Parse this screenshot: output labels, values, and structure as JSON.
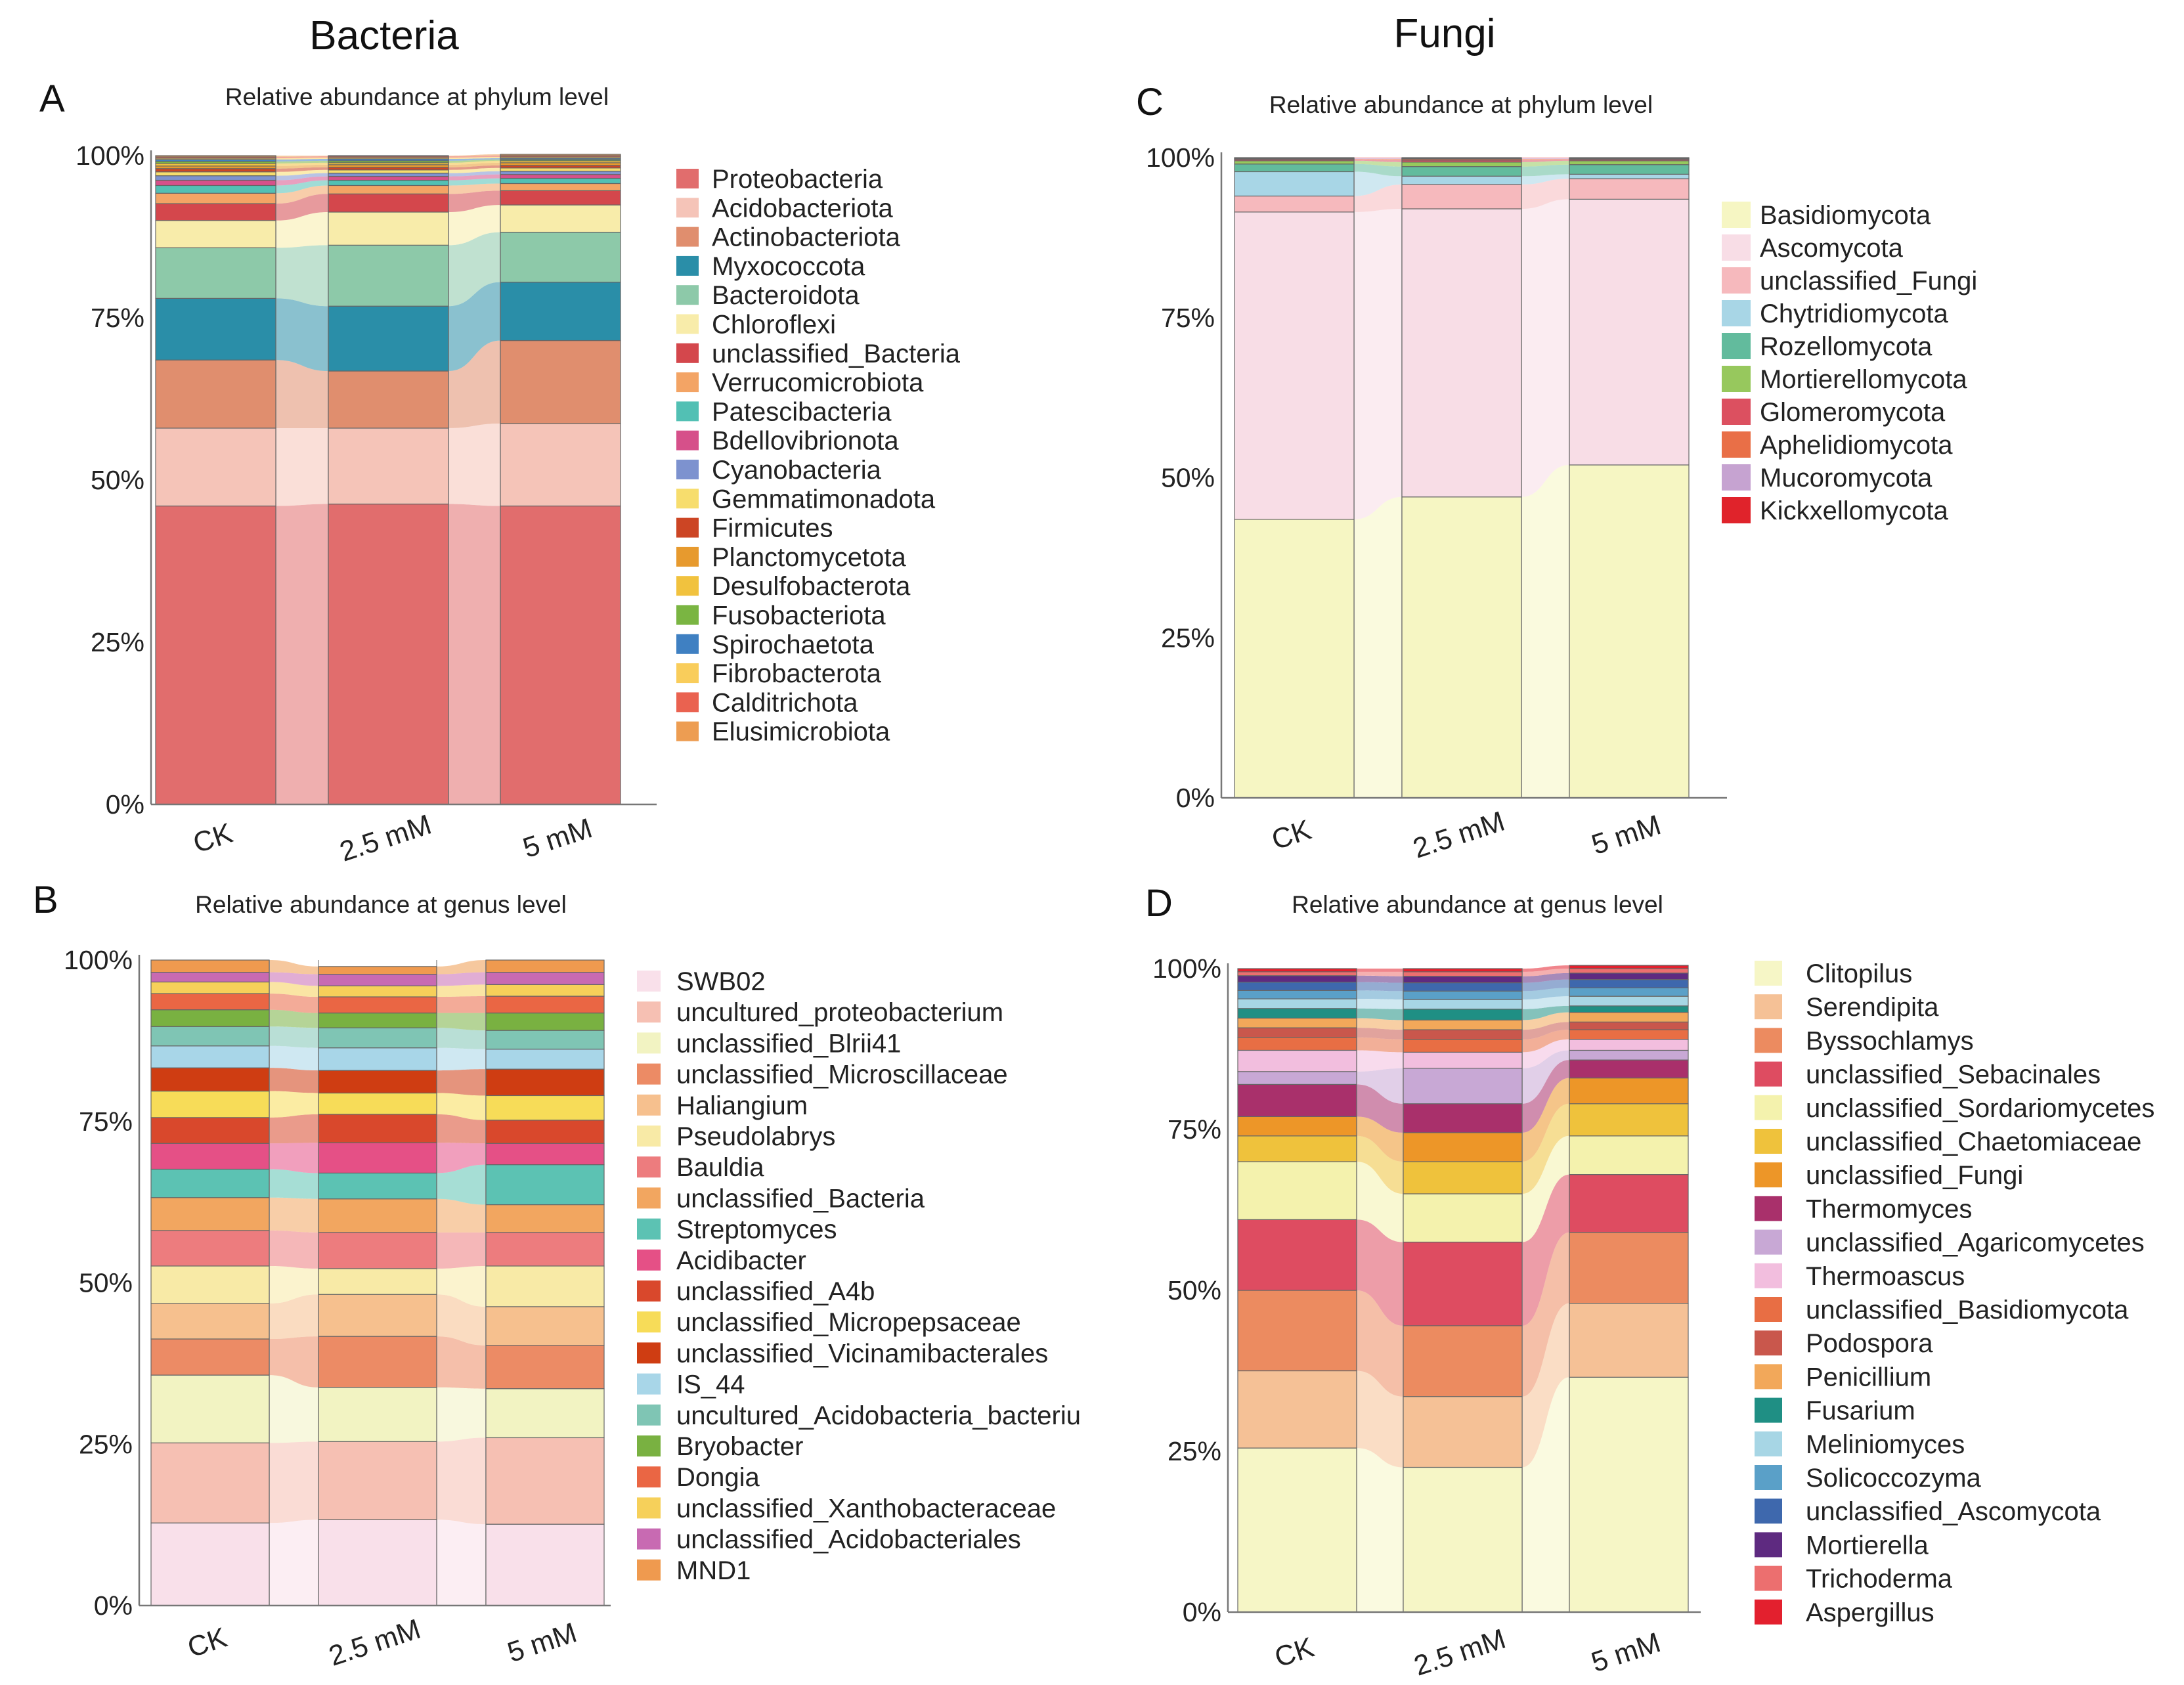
{
  "headers": {
    "left": "Bacteria",
    "right": "Fungi"
  },
  "y_ticks": [
    "0%",
    "25%",
    "50%",
    "75%",
    "100%"
  ],
  "chart_data": [
    {
      "letter": "A",
      "type": "stacked_bar",
      "title": "Relative abundance at phylum level",
      "categories": [
        "CK",
        "2.5 mM",
        "5 mM"
      ],
      "ylim": [
        0,
        100
      ],
      "series": [
        {
          "name": "Proteobacteria",
          "color": "#e16d6d",
          "values": [
            46,
            46.3,
            46
          ]
        },
        {
          "name": "Acidobacteriota",
          "color": "#f5c4b8",
          "values": [
            12,
            11.7,
            12.7
          ]
        },
        {
          "name": "Actinobacteriota",
          "color": "#e08e6e",
          "values": [
            10.5,
            8.8,
            12.8
          ]
        },
        {
          "name": "Myxococcota",
          "color": "#2a8ea8",
          "values": [
            9.5,
            10,
            9
          ]
        },
        {
          "name": "Bacteroidota",
          "color": "#8dc9a9",
          "values": [
            7.8,
            9.4,
            7.7
          ]
        },
        {
          "name": "Chloroflexi",
          "color": "#f8ecaa",
          "values": [
            4.2,
            5.1,
            4.2
          ]
        },
        {
          "name": "unclassified_Bacteria",
          "color": "#d4474c",
          "values": [
            2.6,
            2.8,
            2.2
          ]
        },
        {
          "name": "Verrucomicrobiota",
          "color": "#f3a465",
          "values": [
            1.6,
            1.3,
            1.1
          ]
        },
        {
          "name": "Patescibacteria",
          "color": "#52c0b4",
          "values": [
            1.2,
            0.8,
            0.8
          ]
        },
        {
          "name": "Bdellovibrionota",
          "color": "#d6508a",
          "values": [
            0.8,
            0.6,
            0.6
          ]
        },
        {
          "name": "Cyanobacteria",
          "color": "#7d92cf",
          "values": [
            0.7,
            0.5,
            0.5
          ]
        },
        {
          "name": "Gemmatimonadota",
          "color": "#f7dd6d",
          "values": [
            0.6,
            0.5,
            0.5
          ]
        },
        {
          "name": "Firmicutes",
          "color": "#cc4524",
          "values": [
            0.5,
            0.4,
            0.4
          ]
        },
        {
          "name": "Planctomycetota",
          "color": "#e79a2e",
          "values": [
            0.4,
            0.4,
            0.4
          ]
        },
        {
          "name": "Desulfobacterota",
          "color": "#f1c23e",
          "values": [
            0.4,
            0.3,
            0.3
          ]
        },
        {
          "name": "Fusobacteriota",
          "color": "#7ab542",
          "values": [
            0.3,
            0.3,
            0.2
          ]
        },
        {
          "name": "Spirochaetota",
          "color": "#3f80c2",
          "values": [
            0.3,
            0.3,
            0.2
          ]
        },
        {
          "name": "Fibrobacterota",
          "color": "#f9cd5b",
          "values": [
            0.2,
            0.2,
            0.2
          ]
        },
        {
          "name": "Calditrichota",
          "color": "#ea6250",
          "values": [
            0.2,
            0.2,
            0.2
          ]
        },
        {
          "name": "Elusimicrobiota",
          "color": "#ed9d52",
          "values": [
            0.2,
            0.1,
            0.2
          ]
        }
      ]
    },
    {
      "letter": "B",
      "type": "stacked_bar",
      "title": "Relative abundance at genus level",
      "categories": [
        "CK",
        "2.5 mM",
        "5 mM"
      ],
      "ylim": [
        0,
        100
      ],
      "series": [
        {
          "name": "SWB02",
          "color": "#f9e0ea",
          "values": [
            12.8,
            13.3,
            12.6
          ]
        },
        {
          "name": "uncultured_proteobacterium",
          "color": "#f6c0b3",
          "values": [
            12.4,
            12.1,
            13.4
          ]
        },
        {
          "name": "unclassified_Blrii41",
          "color": "#f2f3c2",
          "values": [
            10.5,
            8.4,
            7.6
          ]
        },
        {
          "name": "unclassified_Microscillaceae",
          "color": "#ec8b65",
          "values": [
            5.6,
            7.9,
            6.7
          ]
        },
        {
          "name": "Haliangium",
          "color": "#f6c08e",
          "values": [
            5.5,
            6.5,
            6.0
          ]
        },
        {
          "name": "Pseudolabrys",
          "color": "#f8eaa6",
          "values": [
            5.8,
            4.0,
            6.3
          ]
        },
        {
          "name": "Bauldia",
          "color": "#ed7c7e",
          "values": [
            5.5,
            5.6,
            5.2
          ]
        },
        {
          "name": "unclassified_Bacteria",
          "color": "#f2a660",
          "values": [
            5.1,
            5.2,
            4.3
          ]
        },
        {
          "name": "Streptomyces",
          "color": "#5cc2b3",
          "values": [
            4.4,
            4.0,
            6.2
          ]
        },
        {
          "name": "Acidibacter",
          "color": "#e55086",
          "values": [
            4.0,
            4.7,
            3.3
          ]
        },
        {
          "name": "unclassified_A4b",
          "color": "#d9482c",
          "values": [
            4.0,
            4.4,
            3.6
          ]
        },
        {
          "name": "unclassified_Micropepsaceae",
          "color": "#f7dc58",
          "values": [
            4.1,
            3.3,
            3.8
          ]
        },
        {
          "name": "unclassified_Vicinamibacterales",
          "color": "#cf3d12",
          "values": [
            3.6,
            3.5,
            4.1
          ]
        },
        {
          "name": "IS_44",
          "color": "#a8d6e8",
          "values": [
            3.4,
            3.5,
            3.1
          ]
        },
        {
          "name": "uncultured_Acidobacteria_bacteriu",
          "color": "#7fc5b4",
          "values": [
            3.0,
            3.1,
            2.9
          ]
        },
        {
          "name": "Bryobacter",
          "color": "#79b141",
          "values": [
            2.6,
            2.3,
            2.7
          ]
        },
        {
          "name": "Dongia",
          "color": "#ea6644",
          "values": [
            2.5,
            2.5,
            2.6
          ]
        },
        {
          "name": "unclassified_Xanthobacteraceae",
          "color": "#f6d05a",
          "values": [
            1.8,
            1.7,
            1.8
          ]
        },
        {
          "name": "unclassified_Acidobacteriales",
          "color": "#c86ab2",
          "values": [
            1.5,
            1.8,
            1.9
          ]
        },
        {
          "name": "MND1",
          "color": "#ef9a4f",
          "values": [
            1.9,
            1.2,
            1.9
          ]
        }
      ]
    },
    {
      "letter": "C",
      "type": "stacked_bar",
      "title": "Relative abundance at phylum level",
      "categories": [
        "CK",
        "2.5 mM",
        "5 mM"
      ],
      "ylim": [
        0,
        100
      ],
      "series": [
        {
          "name": "Basidiomycota",
          "color": "#f6f6c3",
          "values": [
            43.5,
            47,
            52
          ]
        },
        {
          "name": "Ascomycota",
          "color": "#f8dde6",
          "values": [
            48,
            45,
            41.5
          ]
        },
        {
          "name": "unclassified_Fungi",
          "color": "#f6b9bd",
          "values": [
            2.5,
            3.8,
            3.2
          ]
        },
        {
          "name": "Chytridiomycota",
          "color": "#a8d6e6",
          "values": [
            3.8,
            1.3,
            0.7
          ]
        },
        {
          "name": "Rozellomycota",
          "color": "#62bb9d",
          "values": [
            1.2,
            1.5,
            1.5
          ]
        },
        {
          "name": "Mortierellomycota",
          "color": "#97c85d",
          "values": [
            0.5,
            0.7,
            0.6
          ]
        },
        {
          "name": "Glomeromycota",
          "color": "#dc5060",
          "values": [
            0.2,
            0.3,
            0.2
          ]
        },
        {
          "name": "Aphelidiomycota",
          "color": "#e96f47",
          "values": [
            0.1,
            0.2,
            0.1
          ]
        },
        {
          "name": "Mucoromycota",
          "color": "#c6a3d1",
          "values": [
            0.1,
            0.1,
            0.1
          ]
        },
        {
          "name": "Kickxellomycota",
          "color": "#e0232b",
          "values": [
            0.1,
            0.1,
            0.1
          ]
        }
      ]
    },
    {
      "letter": "D",
      "type": "stacked_bar",
      "title": "Relative abundance at genus level",
      "categories": [
        "CK",
        "2.5 mM",
        "5 mM"
      ],
      "ylim": [
        0,
        100
      ],
      "series": [
        {
          "name": "Clitopilus",
          "color": "#f6f6c6",
          "values": [
            25.5,
            22.5,
            36.5
          ]
        },
        {
          "name": "Serendipita",
          "color": "#f5c196",
          "values": [
            12,
            11,
            11.5
          ]
        },
        {
          "name": "Byssochlamys",
          "color": "#ec8b60",
          "values": [
            12.5,
            11,
            11
          ]
        },
        {
          "name": "unclassified_Sebacinales",
          "color": "#de4c61",
          "values": [
            11,
            13,
            9
          ]
        },
        {
          "name": "unclassified_Sordariomycetes",
          "color": "#f4f2ad",
          "values": [
            9,
            7.5,
            6
          ]
        },
        {
          "name": "unclassified_Chaetomiaceae",
          "color": "#efc23c",
          "values": [
            4,
            5,
            5
          ]
        },
        {
          "name": "unclassified_Fungi",
          "color": "#ed9628",
          "values": [
            3,
            4.5,
            4
          ]
        },
        {
          "name": "Thermomyces",
          "color": "#a9306b",
          "values": [
            5,
            4.5,
            2.8
          ]
        },
        {
          "name": "unclassified_Agaricomycetes",
          "color": "#c8a8d5",
          "values": [
            2,
            5.5,
            1.5
          ]
        },
        {
          "name": "Thermoascus",
          "color": "#f2bede",
          "values": [
            3.3,
            2.5,
            1.7
          ]
        },
        {
          "name": "unclassified_Basidiomycota",
          "color": "#e86e44",
          "values": [
            2,
            2,
            1.5
          ]
        },
        {
          "name": "Podospora",
          "color": "#c9574c",
          "values": [
            1.5,
            1.5,
            1.2
          ]
        },
        {
          "name": "Penicillium",
          "color": "#f2a85a",
          "values": [
            1.5,
            1.5,
            1.5
          ]
        },
        {
          "name": "Fusarium",
          "color": "#1f8f84",
          "values": [
            1.5,
            1.7,
            1
          ]
        },
        {
          "name": "Meliniomyces",
          "color": "#a7d6e5",
          "values": [
            1.5,
            1.5,
            1.5
          ]
        },
        {
          "name": "Solicoccozyma",
          "color": "#5aa0c8",
          "values": [
            1.3,
            1.3,
            1.3
          ]
        },
        {
          "name": "unclassified_Ascomycota",
          "color": "#3e68ad",
          "values": [
            1.3,
            1.3,
            1.3
          ]
        },
        {
          "name": "Mortierella",
          "color": "#5e2a80",
          "values": [
            1,
            1,
            1
          ]
        },
        {
          "name": "Trichoderma",
          "color": "#ec6f6f",
          "values": [
            0.6,
            0.7,
            0.7
          ]
        },
        {
          "name": "Aspergillus",
          "color": "#e3202e",
          "values": [
            0.5,
            0.5,
            0.5
          ]
        }
      ]
    }
  ]
}
